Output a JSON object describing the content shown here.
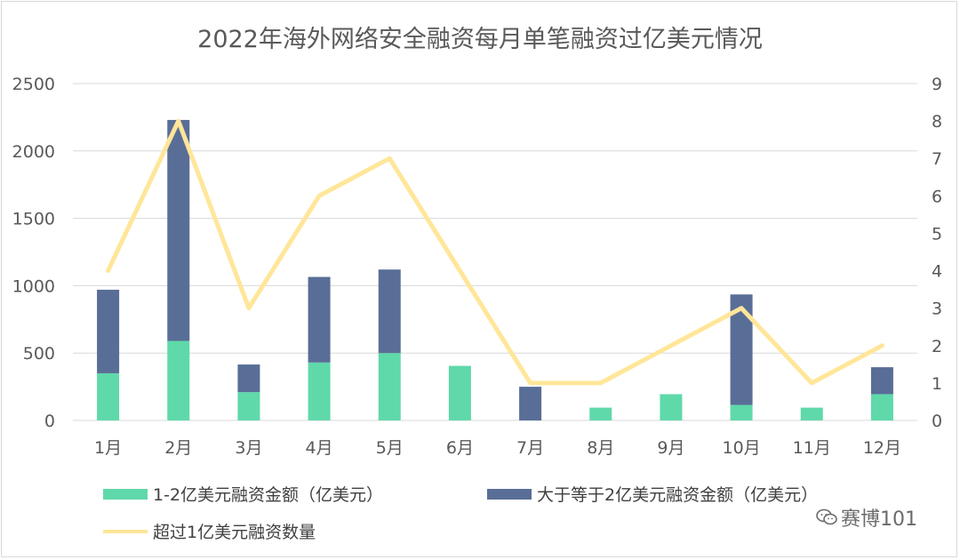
{
  "chart_data": {
    "type": "bar",
    "title": "2022年海外网络安全融资每月单笔融资过亿美元情况",
    "categories": [
      "1月",
      "2月",
      "3月",
      "4月",
      "5月",
      "6月",
      "7月",
      "8月",
      "9月",
      "10月",
      "11月",
      "12月"
    ],
    "series": [
      {
        "name": "1-2亿美元融资金额（亿美元）",
        "type": "bar",
        "stack": "amount",
        "axis": "left",
        "color": "#5fd9a9",
        "values": [
          350,
          590,
          210,
          430,
          500,
          405,
          0,
          95,
          195,
          115,
          95,
          195
        ]
      },
      {
        "name": "大于等于2亿美元融资金额（亿美元）",
        "type": "bar",
        "stack": "amount",
        "axis": "left",
        "color": "#596e97",
        "values": [
          620,
          1640,
          205,
          635,
          620,
          0,
          250,
          0,
          0,
          820,
          0,
          200
        ]
      },
      {
        "name": "超过1亿美元融资数量",
        "type": "line",
        "axis": "right",
        "color": "#ffe699",
        "values": [
          4,
          8,
          3,
          6,
          7,
          4,
          1,
          1,
          2,
          3,
          1,
          2
        ]
      }
    ],
    "y_left": {
      "min": 0,
      "max": 2500,
      "ticks": [
        0,
        500,
        1000,
        1500,
        2000,
        2500
      ]
    },
    "y_right": {
      "min": 0,
      "max": 9,
      "ticks": [
        0,
        1,
        2,
        3,
        4,
        5,
        6,
        7,
        8,
        9
      ]
    },
    "grid": true,
    "legend_position": "bottom"
  },
  "watermark": {
    "text": "赛博101",
    "icon": "wechat-icon"
  }
}
